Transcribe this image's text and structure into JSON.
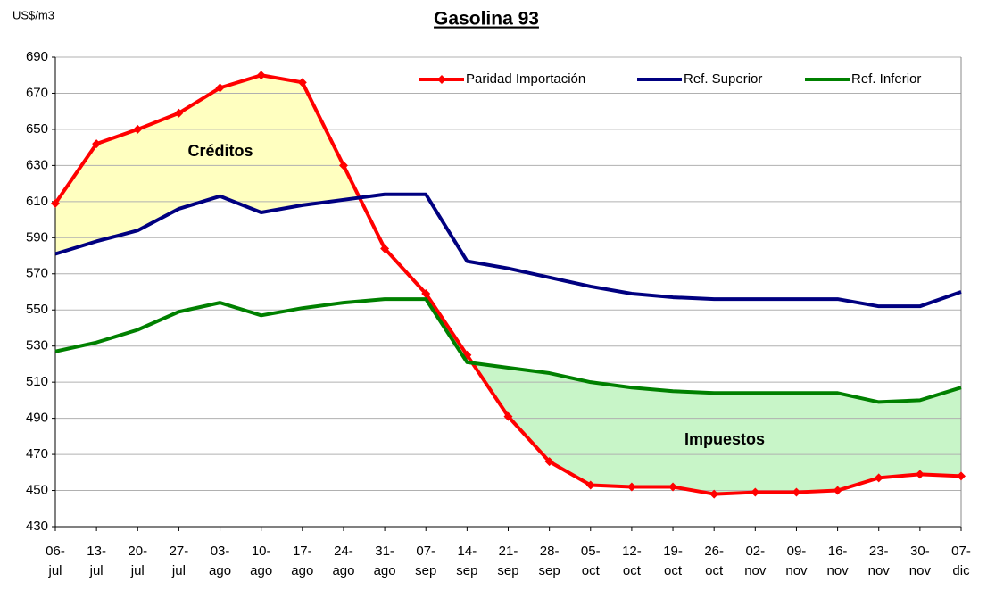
{
  "chart_data": {
    "type": "line",
    "title": "Gasolina 93",
    "y_label": "US$/m3",
    "categories": [
      [
        "06-",
        "jul"
      ],
      [
        "13-",
        "jul"
      ],
      [
        "20-",
        "jul"
      ],
      [
        "27-",
        "jul"
      ],
      [
        "03-",
        "ago"
      ],
      [
        "10-",
        "ago"
      ],
      [
        "17-",
        "ago"
      ],
      [
        "24-",
        "ago"
      ],
      [
        "31-",
        "ago"
      ],
      [
        "07-",
        "sep"
      ],
      [
        "14-",
        "sep"
      ],
      [
        "21-",
        "sep"
      ],
      [
        "28-",
        "sep"
      ],
      [
        "05-",
        "oct"
      ],
      [
        "12-",
        "oct"
      ],
      [
        "19-",
        "oct"
      ],
      [
        "26-",
        "oct"
      ],
      [
        "02-",
        "nov"
      ],
      [
        "09-",
        "nov"
      ],
      [
        "16-",
        "nov"
      ],
      [
        "23-",
        "nov"
      ],
      [
        "30-",
        "nov"
      ],
      [
        "07-",
        "dic"
      ]
    ],
    "series": [
      {
        "name": "Paridad Importación",
        "color": "#ff0000",
        "marker": "diamond",
        "values": [
          609,
          642,
          650,
          659,
          673,
          680,
          676,
          630,
          584,
          559,
          525,
          491,
          466,
          453,
          452,
          452,
          448,
          449,
          449,
          450,
          457,
          459,
          458
        ]
      },
      {
        "name": "Ref. Superior",
        "color": "#000080",
        "values": [
          581,
          588,
          594,
          606,
          613,
          604,
          608,
          611,
          614,
          614,
          577,
          573,
          568,
          563,
          559,
          557,
          556,
          556,
          556,
          556,
          552,
          552,
          560
        ]
      },
      {
        "name": "Ref. Inferior",
        "color": "#008000",
        "values": [
          527,
          532,
          539,
          549,
          554,
          547,
          551,
          554,
          556,
          556,
          521,
          518,
          515,
          510,
          507,
          505,
          504,
          504,
          504,
          504,
          499,
          500,
          507
        ]
      }
    ],
    "annotations": [
      "Créditos",
      "Impuestos"
    ],
    "ylim": [
      430,
      690
    ],
    "yticks": [
      430,
      450,
      470,
      490,
      510,
      530,
      550,
      570,
      590,
      610,
      630,
      650,
      670,
      690
    ],
    "grid": true,
    "legend": "top-right"
  }
}
